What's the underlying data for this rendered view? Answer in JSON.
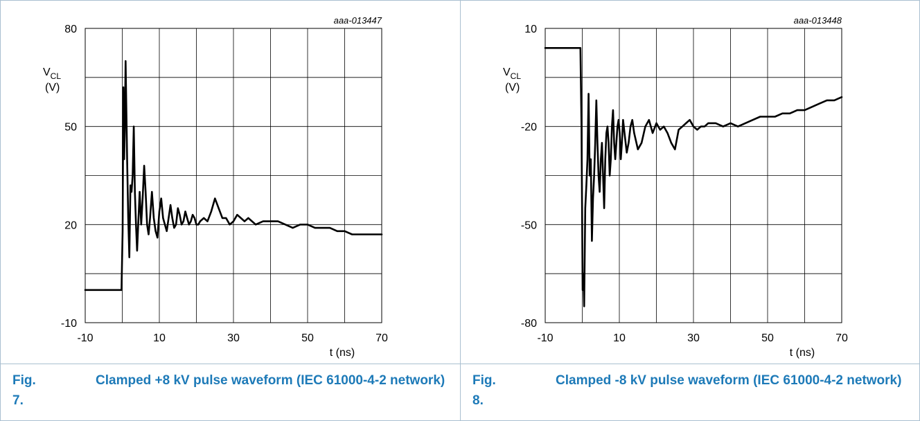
{
  "chart_data": [
    {
      "type": "line",
      "id_label": "aaa-013447",
      "ylabel": "V",
      "ylabel_sub": "CL",
      "ylabel_unit": "(V)",
      "xlabel": "t (ns)",
      "xlim": [
        -10,
        70
      ],
      "ylim": [
        -10,
        80
      ],
      "xticks": [
        "-10",
        "10",
        "30",
        "50",
        "70"
      ],
      "yticks": [
        "-10",
        "20",
        "50",
        "80"
      ],
      "grid": true,
      "line_color": "#000000",
      "series": [
        {
          "x": [
            -10,
            -8,
            -6,
            -4,
            -2,
            -0.2,
            0.1,
            0.3,
            0.5,
            0.7,
            0.9,
            1.1,
            1.3,
            1.6,
            1.9,
            2.2,
            2.5,
            2.8,
            3.1,
            3.4,
            3.7,
            4.0,
            4.3,
            4.7,
            5.1,
            5.5,
            5.9,
            6.3,
            6.7,
            7.1,
            7.5,
            8.0,
            8.5,
            9.0,
            9.5,
            10.0,
            10.5,
            11.0,
            11.5,
            12.0,
            12.5,
            13.0,
            13.5,
            14.0,
            14.5,
            15.0,
            15.5,
            16.0,
            16.5,
            17.0,
            17.5,
            18.0,
            18.5,
            19.0,
            19.5,
            20.0,
            20.5,
            21.0,
            22.0,
            23.0,
            24.0,
            25.0,
            26.0,
            27.0,
            28.0,
            29.0,
            30.0,
            31.0,
            32.0,
            33.0,
            34.0,
            35.0,
            36.0,
            38.0,
            40.0,
            42.0,
            44.0,
            46.0,
            48.0,
            50.0,
            52.0,
            54.0,
            56.0,
            58.0,
            60.0,
            62.0,
            64.0,
            66.0,
            68.0,
            70.0
          ],
          "y": [
            0,
            0,
            0,
            0,
            0,
            0,
            18,
            62,
            40,
            50,
            70,
            55,
            40,
            22,
            10,
            32,
            30,
            35,
            50,
            30,
            20,
            12,
            20,
            30,
            20,
            28,
            38,
            30,
            20,
            17,
            22,
            30,
            22,
            18,
            16,
            24,
            28,
            22,
            20,
            18,
            22,
            26,
            22,
            19,
            20,
            25,
            23,
            20,
            21,
            24,
            22,
            20,
            21,
            23,
            22,
            20,
            20,
            21,
            22,
            21,
            24,
            28,
            25,
            22,
            22,
            20,
            21,
            23,
            22,
            21,
            22,
            21,
            20,
            21,
            21,
            21,
            20,
            19,
            20,
            20,
            19,
            19,
            19,
            18,
            18,
            17,
            17,
            17,
            17,
            17
          ]
        }
      ]
    },
    {
      "type": "line",
      "id_label": "aaa-013448",
      "ylabel": "V",
      "ylabel_sub": "CL",
      "ylabel_unit": "(V)",
      "xlabel": "t (ns)",
      "xlim": [
        -10,
        70
      ],
      "ylim": [
        -80,
        10
      ],
      "xticks": [
        "-10",
        "10",
        "30",
        "50",
        "70"
      ],
      "yticks": [
        "-80",
        "-50",
        "-20",
        "10"
      ],
      "grid": true,
      "line_color": "#000000",
      "series": [
        {
          "x": [
            -10,
            -8,
            -6,
            -4,
            -2,
            -0.5,
            -0.2,
            0.1,
            0.3,
            0.5,
            0.8,
            1.1,
            1.4,
            1.7,
            2.0,
            2.3,
            2.6,
            2.9,
            3.2,
            3.5,
            3.8,
            4.1,
            4.4,
            4.7,
            5.0,
            5.3,
            5.6,
            5.9,
            6.2,
            6.5,
            6.8,
            7.1,
            7.4,
            7.7,
            8.0,
            8.3,
            8.6,
            8.9,
            9.2,
            9.5,
            9.8,
            10.1,
            10.4,
            10.7,
            11.0,
            11.5,
            12.0,
            12.5,
            13.0,
            13.5,
            14.0,
            15.0,
            16.0,
            17.0,
            18.0,
            19.0,
            20.0,
            21.0,
            22.0,
            23.0,
            24.0,
            25.0,
            26.0,
            27.0,
            28.0,
            29.0,
            30.0,
            31.0,
            32.0,
            33.0,
            34.0,
            36.0,
            38.0,
            40.0,
            42.0,
            44.0,
            46.0,
            48.0,
            50.0,
            52.0,
            54.0,
            56.0,
            58.0,
            60.0,
            62.0,
            64.0,
            66.0,
            68.0,
            70.0
          ],
          "y": [
            4,
            4,
            4,
            4,
            4,
            4,
            -20,
            -70,
            -65,
            -75,
            -45,
            -38,
            -30,
            -10,
            -35,
            -30,
            -55,
            -42,
            -35,
            -25,
            -12,
            -25,
            -35,
            -40,
            -30,
            -25,
            -35,
            -45,
            -30,
            -22,
            -20,
            -25,
            -35,
            -30,
            -20,
            -15,
            -25,
            -30,
            -25,
            -20,
            -18,
            -22,
            -30,
            -25,
            -18,
            -23,
            -28,
            -25,
            -20,
            -18,
            -22,
            -27,
            -25,
            -20,
            -18,
            -22,
            -19,
            -21,
            -20,
            -22,
            -25,
            -27,
            -21,
            -20,
            -19,
            -18,
            -20,
            -21,
            -20,
            -20,
            -19,
            -19,
            -20,
            -19,
            -20,
            -19,
            -18,
            -17,
            -17,
            -17,
            -16,
            -16,
            -15,
            -15,
            -14,
            -13,
            -12,
            -12,
            -11
          ]
        }
      ]
    }
  ],
  "captions": [
    {
      "number": "Fig. 7.",
      "text": "Clamped +8 kV pulse waveform (IEC 61000-4-2 network)"
    },
    {
      "number": "Fig. 8.",
      "text": "Clamped -8 kV pulse waveform (IEC 61000-4-2 network)"
    }
  ]
}
